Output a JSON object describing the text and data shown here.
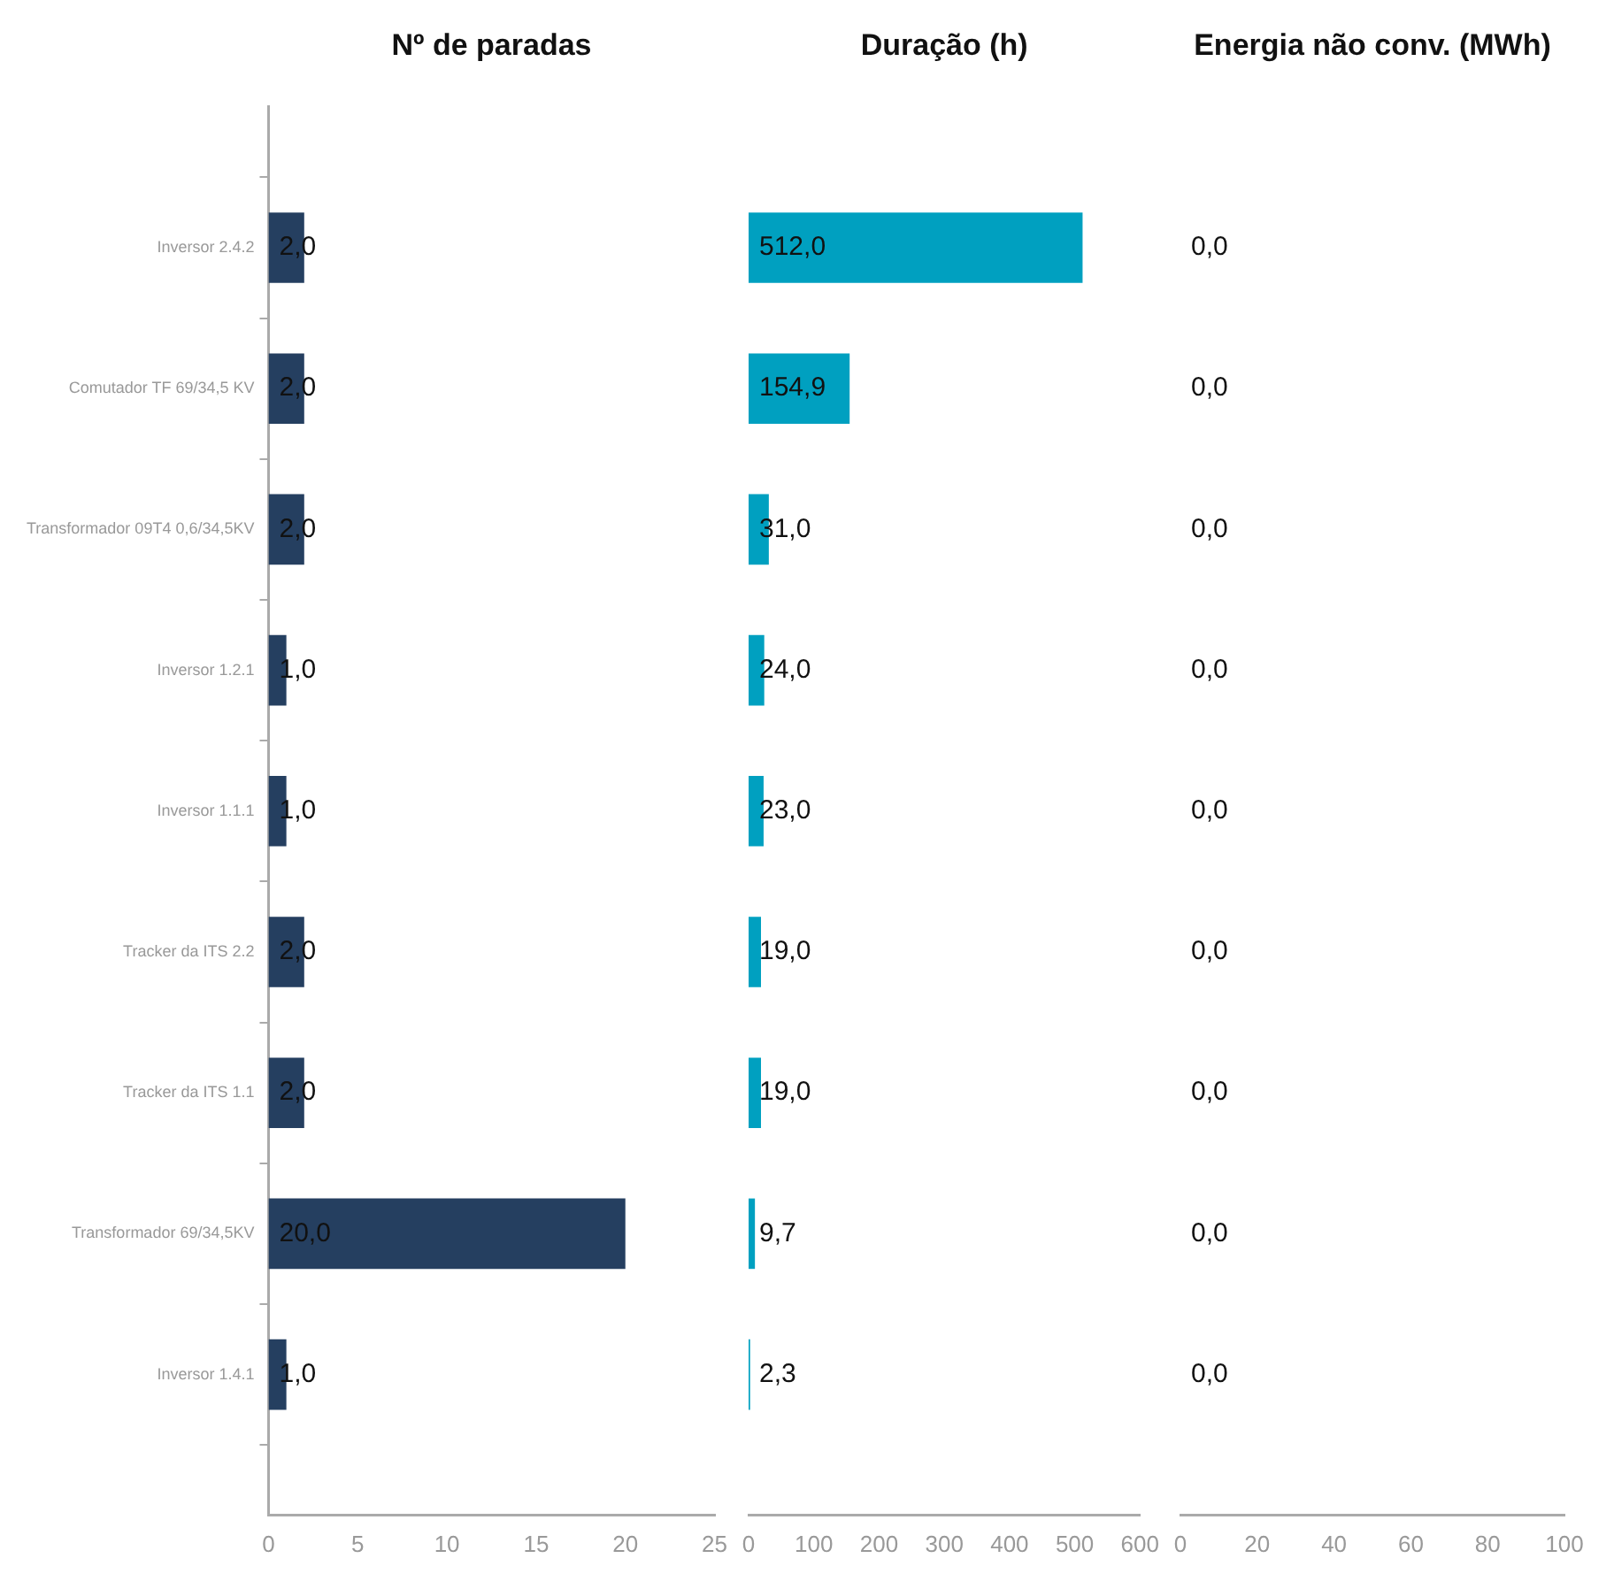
{
  "chart_data": [
    {
      "type": "bar",
      "orientation": "horizontal",
      "title": "Nº de paradas",
      "categories": [
        null,
        "Inversor 2.4.2",
        "Comutador TF 69/34,5 KV",
        "Transformador 09T4 0,6/34,5KV",
        "Inversor 1.2.1",
        "Inversor 1.1.1",
        "Tracker da ITS 2.2",
        "Tracker da ITS 1.1",
        "Transformador 69/34,5KV",
        "Inversor 1.4.1",
        null
      ],
      "values": [
        null,
        2,
        2,
        2,
        1,
        1,
        2,
        2,
        20,
        1,
        null
      ],
      "value_labels": [
        null,
        "2,0",
        "2,0",
        "2,0",
        "1,0",
        "1,0",
        "2,0",
        "2,0",
        "20,0",
        "1,0",
        null
      ],
      "color": "#253f60",
      "xlim": [
        0,
        25
      ],
      "xticks": [
        0,
        5,
        10,
        15,
        20,
        25
      ]
    },
    {
      "type": "bar",
      "orientation": "horizontal",
      "title": "Duração (h)",
      "tick_labels": "x",
      "categories": [
        null,
        null,
        null,
        null,
        null,
        null,
        null,
        null,
        null,
        null,
        null
      ],
      "values": [
        null,
        512.0,
        154.9,
        31.0,
        24.0,
        23.0,
        19.0,
        19.0,
        9.7,
        2.3,
        null
      ],
      "value_labels": [
        null,
        "512,0",
        "154,9",
        "31,0",
        "24,0",
        "23,0",
        "19,0",
        "19,0",
        "9,7",
        "2,3",
        null
      ],
      "color": "#00a0c0",
      "xlim": [
        0,
        600
      ],
      "xticks": [
        0,
        100,
        200,
        300,
        400,
        500,
        600
      ]
    },
    {
      "type": "bar",
      "orientation": "horizontal",
      "title": "Energia não conv. (MWh)",
      "tick_labels": "x",
      "categories": [
        null,
        null,
        null,
        null,
        null,
        null,
        null,
        null,
        null,
        null,
        null
      ],
      "values": [
        null,
        0,
        0,
        0,
        0,
        0,
        0,
        0,
        0,
        0,
        null
      ],
      "value_labels": [
        null,
        "0,0",
        "0,0",
        "0,0",
        "0,0",
        "0,0",
        "0,0",
        "0,0",
        "0,0",
        "0,0",
        null
      ],
      "xlim": [
        0,
        100
      ],
      "xticks": [
        0,
        20,
        40,
        60,
        80,
        100
      ]
    }
  ]
}
